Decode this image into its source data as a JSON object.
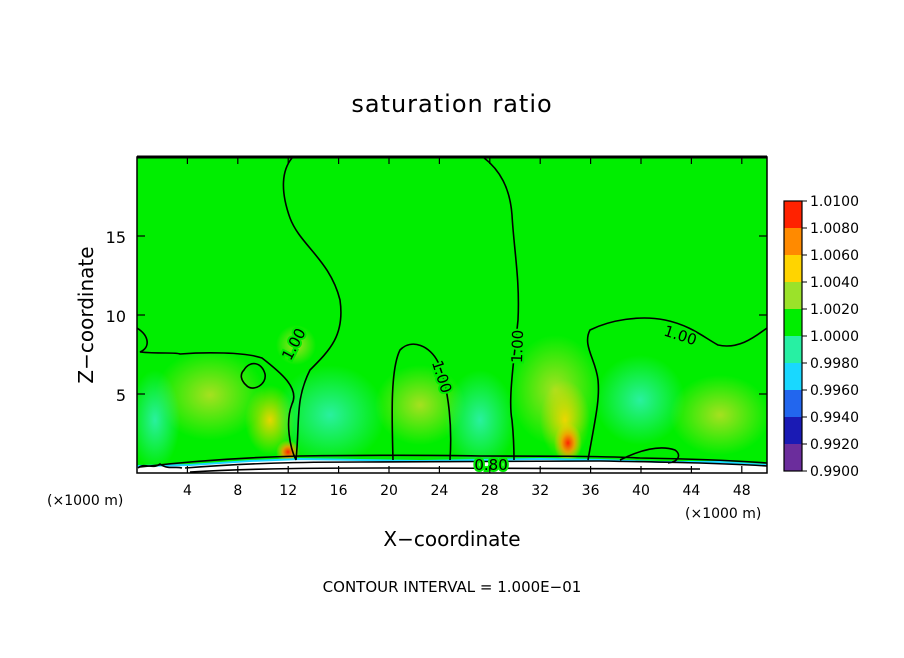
{
  "chart_data": {
    "type": "heatmap",
    "title": "saturation ratio",
    "xlabel": "X−coordinate",
    "ylabel": "Z−coordinate",
    "x_unit_left": "(×1000 m)",
    "x_unit_right": "(×1000 m)",
    "xlim": [
      0,
      50
    ],
    "ylim": [
      0,
      20
    ],
    "x_ticks": [
      4,
      8,
      12,
      16,
      20,
      24,
      28,
      32,
      36,
      40,
      44,
      48
    ],
    "y_ticks": [
      5,
      10,
      15
    ],
    "colorbar": {
      "levels": [
        {
          "value": 0.99,
          "label": "0.9900",
          "color": "#6b2d9c"
        },
        {
          "value": 0.992,
          "label": "0.9920",
          "color": "#1a1ab4"
        },
        {
          "value": 0.994,
          "label": "0.9940",
          "color": "#2266ee"
        },
        {
          "value": 0.996,
          "label": "0.9960",
          "color": "#19d8ff"
        },
        {
          "value": 0.998,
          "label": "0.9980",
          "color": "#27f0a3"
        },
        {
          "value": 1.0,
          "label": "1.0000",
          "color": "#00ee00"
        },
        {
          "value": 1.002,
          "label": "1.0020",
          "color": "#9be22a"
        },
        {
          "value": 1.004,
          "label": "1.0040",
          "color": "#ffd400"
        },
        {
          "value": 1.006,
          "label": "1.0060",
          "color": "#ff8a00"
        },
        {
          "value": 1.008,
          "label": "1.0080",
          "color": "#ff2200"
        },
        {
          "value": 1.01,
          "label": "1.0100",
          "color": "#ff7a7a"
        }
      ]
    },
    "contour_labels": [
      {
        "text": "1.00",
        "x": 12.8,
        "z": 8.0
      },
      {
        "text": "1.00",
        "x": 23.8,
        "z": 6.0
      },
      {
        "text": "1.00",
        "x": 30.6,
        "z": 8.0
      },
      {
        "text": "1.00",
        "x": 43.0,
        "z": 8.4
      },
      {
        "text": "0.80",
        "x": 28.1,
        "z": 0.2
      }
    ],
    "footnote": "CONTOUR INTERVAL = 1.000E−01",
    "background_color": "#00ee00"
  }
}
